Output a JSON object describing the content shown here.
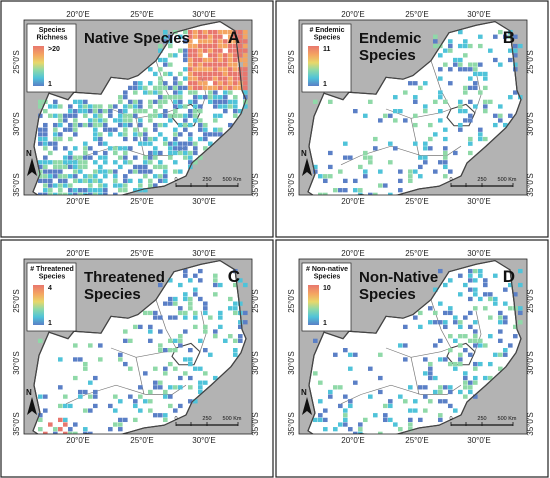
{
  "panels": [
    {
      "id": "A",
      "title_lines": [
        "Native Species"
      ],
      "legend_title_lines": [
        "Species",
        "Richness"
      ],
      "legend_max": ">20",
      "legend_min": "1"
    },
    {
      "id": "B",
      "title_lines": [
        "Endemic",
        "Species"
      ],
      "legend_title_lines": [
        "# Endemic",
        "Species"
      ],
      "legend_max": "11",
      "legend_min": "1"
    },
    {
      "id": "C",
      "title_lines": [
        "Threatened",
        "Species"
      ],
      "legend_title_lines": [
        "# Threatened",
        "Species"
      ],
      "legend_max": "4",
      "legend_min": "1"
    },
    {
      "id": "D",
      "title_lines": [
        "Non-Native",
        "Species"
      ],
      "legend_title_lines": [
        "# Non-native",
        "Species"
      ],
      "legend_max": "10",
      "legend_min": "1"
    }
  ],
  "axes": {
    "x_ticks": [
      "20°0'E",
      "25°0'E",
      "30°0'E"
    ],
    "y_ticks": [
      "25°0'S",
      "30°0'S",
      "35°0'S"
    ]
  },
  "scale_bar": {
    "labels": [
      "0",
      "250",
      "500 Km"
    ]
  },
  "north_arrow": {
    "label": "N"
  },
  "colors": {
    "ocean": "#b3b3b3",
    "land": "#ffffff",
    "boundary": "#444444",
    "ramp": [
      "#e8776e",
      "#f4a562",
      "#e8d86a",
      "#8fd9a8",
      "#4fc3d9",
      "#5a7fc6"
    ]
  }
}
